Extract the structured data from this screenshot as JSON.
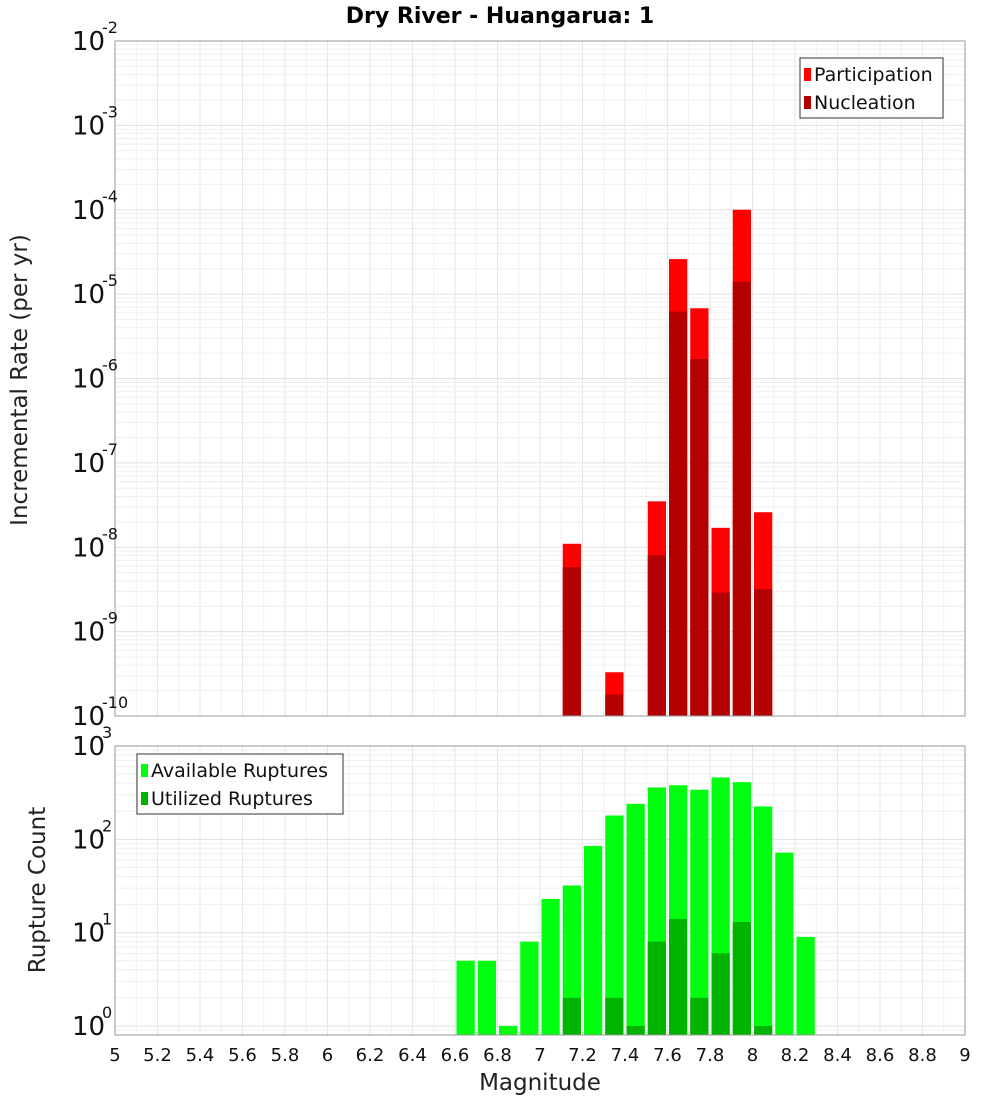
{
  "chart_data": [
    {
      "type": "bar",
      "title": "Dry River - Huangarua: 1",
      "ylabel": "Incremental Rate (per yr)",
      "xlabel": "",
      "yscale": "log",
      "ylim": [
        1e-10,
        0.01
      ],
      "xlim": [
        5,
        9
      ],
      "ytick_labels": [
        {
          "base": "10",
          "exp": "-10",
          "value": 1e-10
        },
        {
          "base": "10",
          "exp": "-9",
          "value": 1e-09
        },
        {
          "base": "10",
          "exp": "-8",
          "value": 1e-08
        },
        {
          "base": "10",
          "exp": "-7",
          "value": 1e-07
        },
        {
          "base": "10",
          "exp": "-6",
          "value": 1e-06
        },
        {
          "base": "10",
          "exp": "-5",
          "value": 1e-05
        },
        {
          "base": "10",
          "exp": "-4",
          "value": 0.0001
        },
        {
          "base": "10",
          "exp": "-3",
          "value": 0.001
        },
        {
          "base": "10",
          "exp": "-2",
          "value": 0.01
        }
      ],
      "legend": {
        "position": "top-right",
        "entries": [
          "Participation",
          "Nucleation"
        ]
      },
      "grid": true,
      "series": [
        {
          "name": "Participation",
          "color": "#ff0000",
          "x": [
            7.15,
            7.35,
            7.55,
            7.65,
            7.75,
            7.85,
            7.95,
            8.05
          ],
          "values": [
            1.1e-08,
            3.3e-10,
            3.5e-08,
            2.6e-05,
            6.8e-06,
            1.7e-08,
            0.0001,
            2.6e-08
          ]
        },
        {
          "name": "Nucleation",
          "color": "#b30000",
          "x": [
            7.15,
            7.35,
            7.55,
            7.65,
            7.75,
            7.85,
            7.95,
            8.05
          ],
          "values": [
            5.8e-09,
            1.8e-10,
            8e-09,
            6.2e-06,
            1.7e-06,
            2.9e-09,
            1.4e-05,
            3.2e-09
          ]
        }
      ]
    },
    {
      "type": "bar",
      "ylabel": "Rupture Count",
      "xlabel": "Magnitude",
      "yscale": "log",
      "ylim": [
        0.8,
        1000
      ],
      "xlim": [
        5,
        9
      ],
      "ytick_labels": [
        {
          "base": "10",
          "exp": "0",
          "value": 1
        },
        {
          "base": "10",
          "exp": "1",
          "value": 10
        },
        {
          "base": "10",
          "exp": "2",
          "value": 100
        },
        {
          "base": "10",
          "exp": "3",
          "value": 1000
        }
      ],
      "xticks": [
        "5",
        "5.2",
        "5.4",
        "5.6",
        "5.8",
        "6",
        "6.2",
        "6.4",
        "6.6",
        "6.8",
        "7",
        "7.2",
        "7.4",
        "7.6",
        "7.8",
        "8",
        "8.2",
        "8.4",
        "8.6",
        "8.8",
        "9"
      ],
      "legend": {
        "position": "top-left",
        "entries": [
          "Available Ruptures",
          "Utilized Ruptures"
        ]
      },
      "grid": true,
      "series": [
        {
          "name": "Available Ruptures",
          "color": "#00ff0f",
          "x": [
            6.65,
            6.75,
            6.85,
            6.95,
            7.05,
            7.15,
            7.25,
            7.35,
            7.45,
            7.55,
            7.65,
            7.75,
            7.85,
            7.95,
            8.05,
            8.15,
            8.25
          ],
          "values": [
            5,
            5,
            1,
            8,
            23,
            32,
            85,
            180,
            240,
            360,
            380,
            340,
            460,
            410,
            225,
            72,
            9
          ]
        },
        {
          "name": "Utilized Ruptures",
          "color": "#00b300",
          "x": [
            7.15,
            7.35,
            7.45,
            7.55,
            7.65,
            7.75,
            7.85,
            7.95,
            8.05
          ],
          "values": [
            2,
            2,
            1,
            8,
            14,
            2,
            6,
            13,
            1
          ]
        }
      ]
    }
  ]
}
